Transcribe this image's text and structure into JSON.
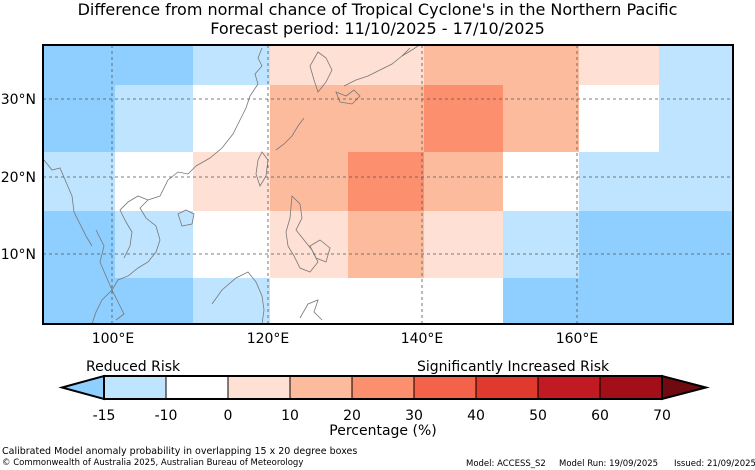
{
  "title_line1": "Difference from normal chance of Tropical Cyclone's in the Northern Pacific",
  "title_line2": "Forecast period: 11/10/2025 - 17/10/2025",
  "map": {
    "lat_labels": [
      "30°N",
      "20°N",
      "10°N"
    ],
    "lon_labels": [
      "100°E",
      "120°E",
      "140°E",
      "160°E"
    ],
    "lat_range": [
      0,
      37.5
    ],
    "lon_range": [
      91,
      180
    ],
    "cells_note": "15 x 20 degree overlapping boxes, values are percentage category",
    "grid": [
      {
        "lat0": 30,
        "lat1": 37.5,
        "lon0": 91,
        "lon1": 110,
        "cat": -15
      },
      {
        "lat0": 30,
        "lat1": 37.5,
        "lon0": 110,
        "lon1": 120,
        "cat": -10
      },
      {
        "lat0": 30,
        "lat1": 37.5,
        "lon0": 120,
        "lon1": 130,
        "cat": 0
      },
      {
        "lat0": 30,
        "lat1": 37.5,
        "lon0": 130,
        "lon1": 150,
        "cat": 10
      },
      {
        "lat0": 30,
        "lat1": 37.5,
        "lon0": 150,
        "lon1": 160,
        "cat": 10
      },
      {
        "lat0": 30,
        "lat1": 37.5,
        "lon0": 160,
        "lon1": 170,
        "cat": 0
      },
      {
        "lat0": 30,
        "lat1": 37.5,
        "lon0": 170,
        "lon1": 180,
        "cat": -10
      }
    ]
  },
  "legend": {
    "left_label": "Reduced Risk",
    "right_label": "Significantly Increased Risk",
    "ticks": [
      "-15",
      "-10",
      "0",
      "10",
      "20",
      "30",
      "40",
      "50",
      "60",
      "70"
    ],
    "xlabel": "Percentage (%)",
    "colors": [
      "#8ecfff",
      "#bfe4ff",
      "#ffffff",
      "#ffe0d4",
      "#fdbb9e",
      "#fb8f6e",
      "#f46349",
      "#e03a2f",
      "#c11a22",
      "#a30f19",
      "#6e0a10"
    ]
  },
  "footer": {
    "line1": "Calibrated Model anomaly probability in overlapping 15 x 20 degree boxes",
    "line2": "© Commonwealth of Australia 2025, Australian Bureau of Meteorology",
    "model": "Model: ACCESS_S2",
    "run": "Model Run: 19/09/2025",
    "issued": "Issued: 21/09/2025"
  }
}
